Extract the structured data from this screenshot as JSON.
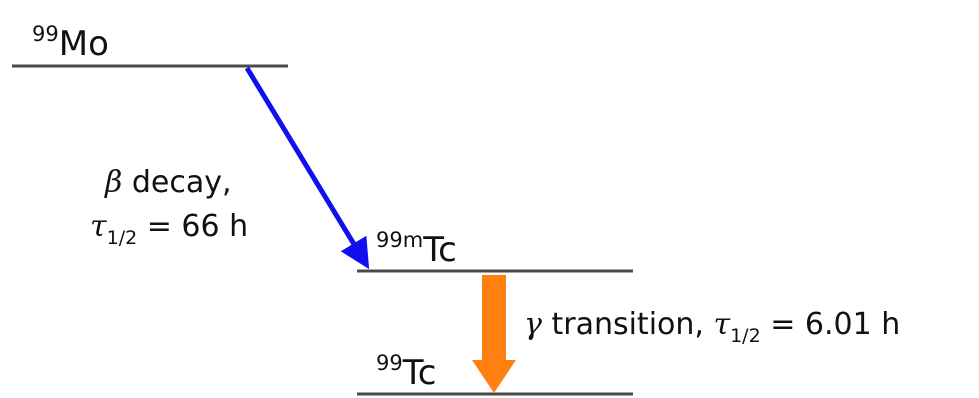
{
  "levels": {
    "mo99": {
      "mass": "99",
      "element": "Mo"
    },
    "tc99m": {
      "mass": "99m",
      "element": "Tc"
    },
    "tc99": {
      "mass": "99",
      "element": "Tc"
    }
  },
  "beta_decay": {
    "symbol": "β",
    "label": " decay,",
    "tau_symbol": "τ",
    "tau_sub": "1/2",
    "equals": " = 66 h",
    "color": "#1010ee"
  },
  "gamma_transition": {
    "symbol": "γ",
    "label": " transition, ",
    "tau_symbol": "τ",
    "tau_sub": "1/2",
    "equals": " = 6.01 h",
    "color": "#ff8010"
  }
}
